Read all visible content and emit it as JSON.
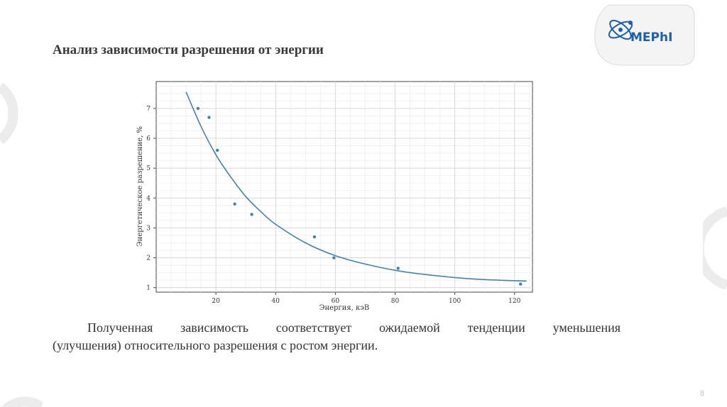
{
  "slide": {
    "title": "Анализ зависимости разрешения от энергии",
    "body_line1": "Полученная зависимость соответствует ожидаемой тенденции уменьшения",
    "body_line2": "(улучшения) относительного разрешения с ростом энергии.",
    "page_number": "8"
  },
  "logo": {
    "text": "MEPhI"
  },
  "colors": {
    "series": "#4682a8",
    "grid": "#d9d9d9",
    "decor": "#ececec"
  },
  "chart_data": {
    "type": "scatter",
    "xlabel": "Энергия, кэВ",
    "ylabel": "Энергетическое разрешение, %",
    "xlim": [
      0,
      126
    ],
    "ylim": [
      0.85,
      7.9
    ],
    "xticks": [
      20,
      40,
      60,
      80,
      100,
      120
    ],
    "yticks": [
      1,
      2,
      3,
      4,
      5,
      6,
      7
    ],
    "grid": true,
    "series": [
      {
        "kind": "points",
        "x": [
          14.0,
          17.7,
          20.5,
          26.3,
          32.0,
          53.0,
          59.5,
          81.0,
          122.0
        ],
        "y": [
          7.0,
          6.7,
          5.6,
          3.8,
          3.45,
          2.7,
          2.0,
          1.65,
          1.12
        ]
      },
      {
        "kind": "fit-line",
        "x": [
          10,
          15,
          20,
          25,
          30,
          35,
          40,
          50,
          60,
          70,
          80,
          90,
          100,
          110,
          124
        ],
        "y": [
          7.55,
          6.4,
          5.45,
          4.7,
          4.05,
          3.55,
          3.12,
          2.5,
          2.07,
          1.79,
          1.58,
          1.44,
          1.34,
          1.27,
          1.22
        ]
      }
    ]
  }
}
